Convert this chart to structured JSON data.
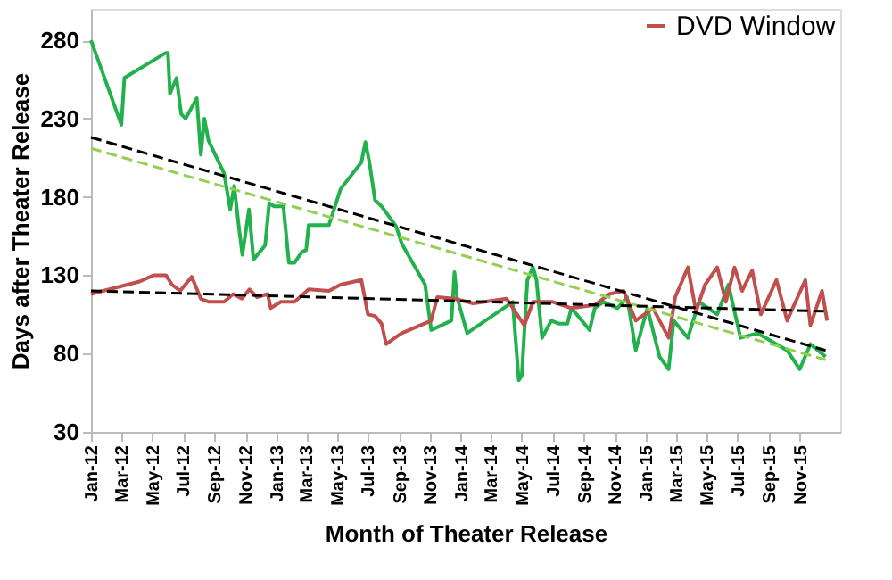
{
  "chart_data": {
    "type": "line",
    "xlabel": "Month of  Theater Release",
    "ylabel": "Days after Theater Release",
    "xlim": [
      "2012-01-01",
      "2016-01-20"
    ],
    "ylim": [
      30,
      300
    ],
    "yticks": [
      30,
      80,
      130,
      180,
      230,
      280
    ],
    "xticks": [
      {
        "value": "2012-01-01",
        "label": "Jan-12"
      },
      {
        "value": "2012-03-01",
        "label": "Mar-12"
      },
      {
        "value": "2012-05-01",
        "label": "May-12"
      },
      {
        "value": "2012-07-01",
        "label": "Jul-12"
      },
      {
        "value": "2012-09-01",
        "label": "Sep-12"
      },
      {
        "value": "2012-11-01",
        "label": "Nov-12"
      },
      {
        "value": "2013-01-01",
        "label": "Jan-13"
      },
      {
        "value": "2013-03-01",
        "label": "Mar-13"
      },
      {
        "value": "2013-05-01",
        "label": "May-13"
      },
      {
        "value": "2013-07-01",
        "label": "Jul-13"
      },
      {
        "value": "2013-09-01",
        "label": "Sep-13"
      },
      {
        "value": "2013-11-01",
        "label": "Nov-13"
      },
      {
        "value": "2014-01-01",
        "label": "Jan-14"
      },
      {
        "value": "2014-03-01",
        "label": "Mar-14"
      },
      {
        "value": "2014-05-01",
        "label": "May-14"
      },
      {
        "value": "2014-07-01",
        "label": "Jul-14"
      },
      {
        "value": "2014-09-01",
        "label": "Sep-14"
      },
      {
        "value": "2014-11-01",
        "label": "Nov-14"
      },
      {
        "value": "2015-01-01",
        "label": "Jan-15"
      },
      {
        "value": "2015-03-01",
        "label": "Mar-15"
      },
      {
        "value": "2015-05-01",
        "label": "May-15"
      },
      {
        "value": "2015-07-01",
        "label": "Jul-15"
      },
      {
        "value": "2015-09-01",
        "label": "Sep-15"
      },
      {
        "value": "2015-11-01",
        "label": "Nov-15"
      }
    ],
    "grid": false,
    "legend": "top right",
    "marker": "none",
    "series": [
      {
        "color": "#22b14c",
        "x": [
          "2012-01-01",
          "2012-03-01",
          "2012-03-07",
          "2012-05-28",
          "2012-06-01",
          "2012-06-05",
          "2012-06-18",
          "2012-06-27",
          "2012-07-06",
          "2012-07-28",
          "2012-08-05",
          "2012-08-12",
          "2012-08-20",
          "2012-09-20",
          "2012-10-02",
          "2012-10-10",
          "2012-10-19",
          "2012-10-26",
          "2012-11-08",
          "2012-11-17",
          "2012-12-10",
          "2012-12-18",
          "2012-12-28",
          "2013-01-15",
          "2013-01-26",
          "2013-02-06",
          "2013-02-21",
          "2013-03-01",
          "2013-03-06",
          "2013-04-15",
          "2013-05-08",
          "2013-06-18",
          "2013-06-26",
          "2013-07-04",
          "2013-07-15",
          "2013-07-28",
          "2013-08-26",
          "2013-09-06",
          "2013-10-22",
          "2013-11-03",
          "2013-12-13",
          "2013-12-19",
          "2013-12-24",
          "2014-01-13",
          "2014-04-13",
          "2014-04-25",
          "2014-05-01",
          "2014-05-12",
          "2014-05-23",
          "2014-05-30",
          "2014-06-10",
          "2014-06-28",
          "2014-07-14",
          "2014-07-30",
          "2014-08-07",
          "2014-09-12",
          "2014-09-22",
          "2014-10-09",
          "2014-11-06",
          "2014-11-25",
          "2014-12-12",
          "2015-01-04",
          "2015-01-28",
          "2015-02-15",
          "2015-02-25",
          "2015-03-25",
          "2015-04-16",
          "2015-05-22",
          "2015-06-13",
          "2015-07-07",
          "2015-08-10",
          "2015-09-16",
          "2015-10-07",
          "2015-11-01",
          "2015-11-22",
          "2015-12-22"
        ],
        "values": [
          280,
          226,
          256,
          272,
          272,
          246,
          256,
          233,
          230,
          243,
          207,
          230,
          216,
          195,
          172,
          187,
          161,
          143,
          172,
          140,
          149,
          176,
          174,
          174,
          138,
          138,
          145,
          146,
          162,
          162,
          185,
          202,
          215,
          202,
          178,
          174,
          161,
          150,
          124,
          95,
          101,
          132,
          116,
          93,
          113,
          63,
          66,
          127,
          135,
          127,
          90,
          101,
          99,
          99,
          109,
          95,
          109,
          113,
          109,
          116,
          82,
          109,
          78,
          70,
          101,
          90,
          113,
          105,
          124,
          90,
          93,
          86,
          82,
          70,
          86,
          78
        ]
      },
      {
        "name": "DVD Window",
        "color": "#c0504d",
        "x": [
          "2012-01-01",
          "2012-03-01",
          "2012-04-06",
          "2012-05-04",
          "2012-05-28",
          "2012-06-09",
          "2012-06-25",
          "2012-07-18",
          "2012-08-05",
          "2012-08-21",
          "2012-09-20",
          "2012-10-08",
          "2012-10-25",
          "2012-11-09",
          "2012-11-24",
          "2012-12-15",
          "2012-12-21",
          "2013-01-10",
          "2013-02-06",
          "2013-03-06",
          "2013-04-15",
          "2013-05-08",
          "2013-06-18",
          "2013-07-01",
          "2013-07-15",
          "2013-07-28",
          "2013-08-06",
          "2013-09-01",
          "2013-09-06",
          "2013-11-03",
          "2013-11-15",
          "2013-12-19",
          "2014-01-25",
          "2014-04-01",
          "2014-05-06",
          "2014-05-23",
          "2014-07-01",
          "2014-08-07",
          "2014-09-22",
          "2014-10-21",
          "2014-11-18",
          "2014-12-12",
          "2015-01-15",
          "2015-02-15",
          "2015-02-28",
          "2015-03-25",
          "2015-04-10",
          "2015-04-28",
          "2015-05-22",
          "2015-06-08",
          "2015-06-25",
          "2015-07-10",
          "2015-07-30",
          "2015-08-16",
          "2015-09-16",
          "2015-10-07",
          "2015-11-12",
          "2015-11-22",
          "2015-12-15",
          "2015-12-25"
        ],
        "values": [
          118,
          123,
          126,
          130,
          130,
          124,
          120,
          129,
          115,
          113,
          113,
          118,
          115,
          121,
          116,
          118,
          109,
          113,
          113,
          121,
          120,
          124,
          127,
          105,
          104,
          99,
          86,
          92,
          93,
          101,
          116,
          115,
          112,
          115,
          98,
          113,
          113,
          109,
          111,
          118,
          120,
          101,
          109,
          90,
          116,
          135,
          107,
          124,
          135,
          113,
          135,
          120,
          133,
          105,
          127,
          101,
          127,
          98,
          120,
          101
        ]
      },
      {
        "color": "#000000",
        "line_style": "dashed",
        "x": [
          "2012-01-01",
          "2015-12-22"
        ],
        "values": [
          218,
          82
        ]
      },
      {
        "color": "#92d050",
        "line_style": "dashed",
        "x": [
          "2012-01-01",
          "2015-12-22"
        ],
        "values": [
          211,
          76
        ]
      },
      {
        "color": "#000000",
        "line_style": "dashed",
        "x": [
          "2012-01-01",
          "2015-12-22"
        ],
        "values": [
          120,
          107
        ]
      }
    ]
  }
}
